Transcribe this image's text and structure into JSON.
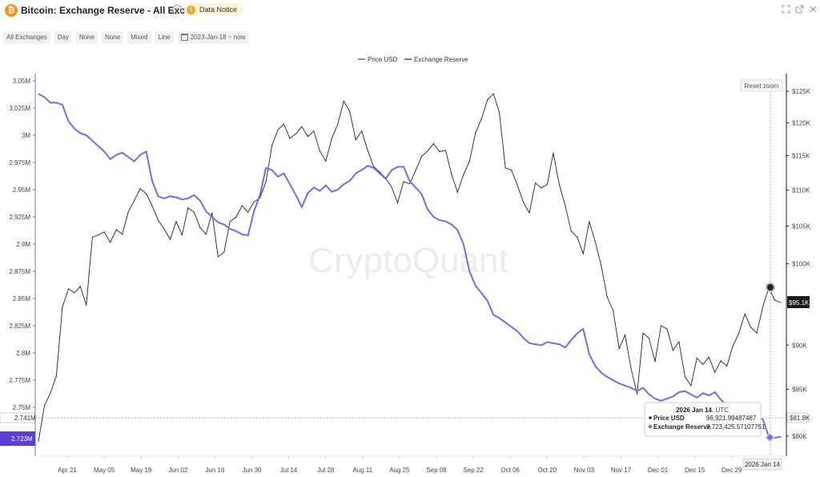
{
  "header": {
    "title": "Bitcoin: Exchange Reserve - All Exchanges",
    "logo_glyph": "₿",
    "info_glyph": "i",
    "notice_label": "Data Notice",
    "notice_glyph": "!",
    "icons": [
      "expand-icon",
      "external-link-icon",
      "close-icon"
    ]
  },
  "toolbar": {
    "exchange": "All Exchanges",
    "interval": "Day",
    "option1": "None",
    "option2": "None",
    "scale": "Mixed",
    "chart_style": "Line",
    "date_range": "2023-Jan-18 ~ now"
  },
  "reset_zoom_label": "Reset zoom",
  "watermark": "CryptoQuant",
  "colors": {
    "price": "#222222",
    "reserve": "#7b68ee",
    "crosshair": "#9b9b9b"
  },
  "tooltip": {
    "date_bold": "2026 Jan 14",
    "date_suffix": ", UTC",
    "price_label": "Price USD",
    "price_value": "96,921.99487487",
    "reserve_label": "Exchange Reserve",
    "reserve_value": "2,723,425.57107751"
  },
  "crosshair_date_label": "2026 Jan 14",
  "flags": {
    "left_reserve_current": "2.723M",
    "left_crosshair": "2.741M",
    "right_price_current": "$95.1K",
    "right_crosshair": "$81.8K"
  },
  "chart_data": {
    "type": "line",
    "title": "Bitcoin: Exchange Reserve - All Exchanges",
    "legend_position": "top-center",
    "grid": false,
    "x_axis": {
      "ticks": [
        "Apr 21",
        "May 05",
        "May 19",
        "Jun 02",
        "Jun 16",
        "Jun 30",
        "Jul 14",
        "Jul 28",
        "Aug 11",
        "Aug 25",
        "Sep 08",
        "Sep 22",
        "Oct 06",
        "Oct 20",
        "Nov 03",
        "Nov 17",
        "Dec 01",
        "Dec 15",
        "Dec 29"
      ],
      "range": [
        "2025-Apr-08",
        "2026-Jan-18"
      ]
    },
    "y_left": {
      "label": "",
      "ticks": [
        "3.05M",
        "3.025M",
        "3M",
        "2.975M",
        "2.95M",
        "2.925M",
        "2.9M",
        "2.875M",
        "2.85M",
        "2.825M",
        "2.8M",
        "2.775M",
        "2.75M"
      ],
      "range": [
        2.723,
        3.05
      ]
    },
    "y_right": {
      "label": "",
      "ticks": [
        "$125K",
        "$120K",
        "$115K",
        "$110K",
        "$105K",
        "$100K",
        "$90K",
        "$85K",
        "$80K"
      ],
      "scale": "log"
    },
    "series": [
      {
        "name": "Price USD",
        "axis": "right",
        "values": [
          79500,
          83200,
          84600,
          86500,
          94500,
          96800,
          96300,
          97100,
          94800,
          103500,
          103800,
          104200,
          102800,
          104500,
          103900,
          106900,
          108500,
          110200,
          109500,
          107800,
          105800,
          104600,
          103200,
          105600,
          103800,
          107500,
          106900,
          104800,
          103900,
          106800,
          100900,
          101500,
          105600,
          106200,
          107800,
          106900,
          108300,
          108900,
          111200,
          116500,
          118900,
          119800,
          117600,
          118300,
          119400,
          117900,
          118700,
          115700,
          114200,
          117600,
          119800,
          123400,
          121800,
          117400,
          118700,
          115800,
          113400,
          112600,
          111700,
          110400,
          108200,
          111200,
          110900,
          112800,
          114900,
          115700,
          116800,
          115600,
          115800,
          112300,
          109700,
          112200,
          114200,
          118400,
          120600,
          123600,
          124600,
          121600,
          113200,
          112900,
          110700,
          108300,
          106800,
          111000,
          110300,
          110800,
          115400,
          110800,
          107800,
          104300,
          103500,
          101300,
          105600,
          102900,
          99800,
          95800,
          94100,
          89600,
          91200,
          87300,
          84500,
          91400,
          90800,
          88100,
          92300,
          91900,
          89400,
          90400,
          86400,
          85400,
          88500,
          87800,
          88600,
          86900,
          88200,
          87600,
          89900,
          91400,
          93700,
          92100,
          91400,
          94600,
          96920,
          95400,
          95100
        ]
      },
      {
        "name": "Exchange Reserve",
        "axis": "left",
        "values": [
          3.038,
          3.035,
          3.03,
          3.03,
          3.028,
          3.013,
          3.006,
          3.002,
          3.0,
          2.995,
          2.99,
          2.985,
          2.978,
          2.982,
          2.984,
          2.98,
          2.976,
          2.982,
          2.985,
          2.958,
          2.944,
          2.942,
          2.944,
          2.943,
          2.941,
          2.942,
          2.945,
          2.94,
          2.93,
          2.925,
          2.92,
          2.918,
          2.914,
          2.912,
          2.909,
          2.908,
          2.93,
          2.945,
          2.97,
          2.968,
          2.962,
          2.965,
          2.955,
          2.945,
          2.934,
          2.947,
          2.952,
          2.949,
          2.954,
          2.948,
          2.95,
          2.955,
          2.958,
          2.965,
          2.968,
          2.972,
          2.97,
          2.965,
          2.96,
          2.968,
          2.971,
          2.971,
          2.958,
          2.952,
          2.946,
          2.932,
          2.925,
          2.922,
          2.921,
          2.918,
          2.913,
          2.9,
          2.875,
          2.862,
          2.855,
          2.848,
          2.835,
          2.832,
          2.828,
          2.824,
          2.82,
          2.814,
          2.809,
          2.808,
          2.807,
          2.81,
          2.809,
          2.808,
          2.805,
          2.812,
          2.818,
          2.822,
          2.799,
          2.788,
          2.782,
          2.778,
          2.775,
          2.772,
          2.77,
          2.768,
          2.765,
          2.768,
          2.762,
          2.758,
          2.756,
          2.758,
          2.76,
          2.764,
          2.765,
          2.762,
          2.759,
          2.763,
          2.761,
          2.764,
          2.757,
          2.752,
          2.745,
          2.742,
          2.744,
          2.741,
          2.741,
          2.739,
          2.7234,
          2.722,
          2.723
        ]
      }
    ]
  }
}
